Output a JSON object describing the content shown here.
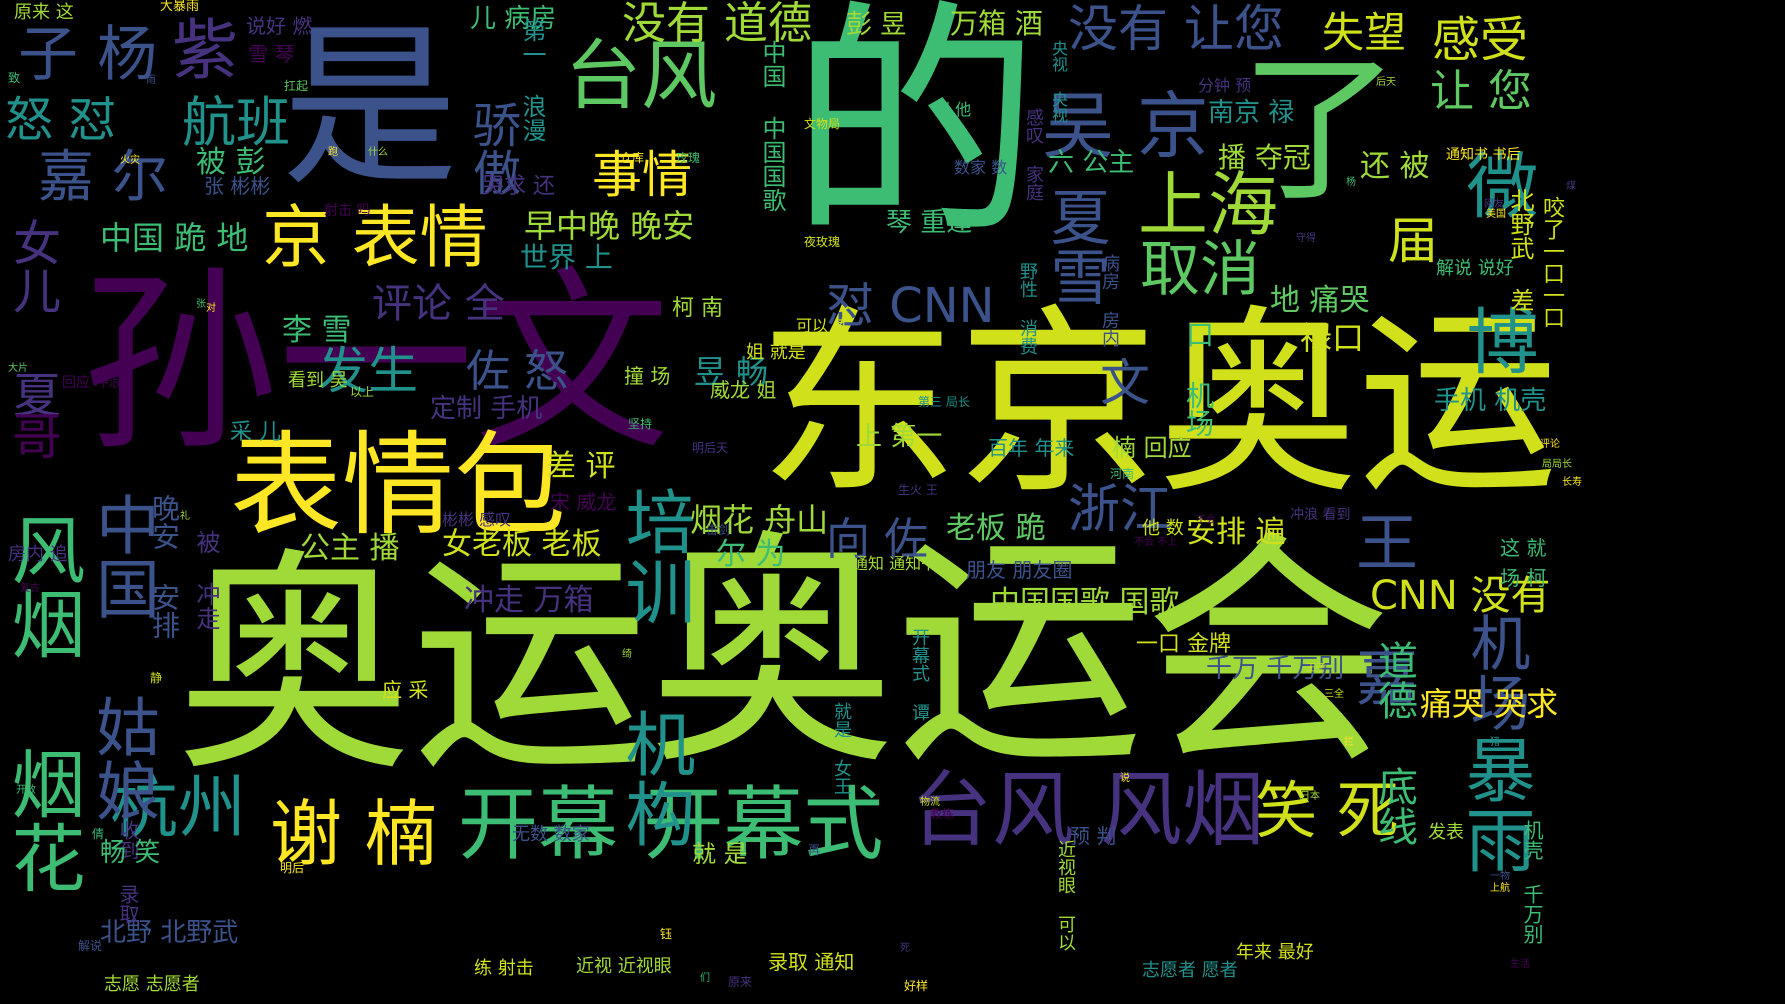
{
  "background_color": "#000000",
  "palette": [
    "#440154",
    "#3b528b",
    "#21918c",
    "#5ec962",
    "#a0da39",
    "#d0e11c",
    "#fde725"
  ],
  "words": [
    {
      "id": "w-aoyun-1",
      "text": "奥运",
      "color": "#a0da39"
    },
    {
      "id": "w-aoyunhui",
      "text": "奥运会",
      "color": "#a0da39"
    },
    {
      "id": "w-de",
      "text": "的",
      "color": "#3dbc74"
    },
    {
      "id": "w-dongjing-aoyun",
      "text": "东京奥运",
      "color": "#d0e11c"
    },
    {
      "id": "w-sun-yiwen",
      "text": "孙一文",
      "color": "#440154"
    },
    {
      "id": "w-shi",
      "text": "是",
      "color": "#3b528b"
    },
    {
      "id": "w-le",
      "text": "了",
      "color": "#5ec962"
    },
    {
      "id": "w-biaoqingbao",
      "text": "表情包",
      "color": "#fde725"
    },
    {
      "id": "w-jing-biaoqing",
      "text": "京 表情",
      "color": "#fde725"
    },
    {
      "id": "w-taifeng-1",
      "text": "台风",
      "color": "#5ec962"
    },
    {
      "id": "w-taifeng-fengyan",
      "text": "台风 风烟",
      "color": "#46327e"
    },
    {
      "id": "w-kaimu",
      "text": "开幕 开幕式",
      "color": "#3dbc74"
    },
    {
      "id": "w-xienan",
      "text": "谢 楠",
      "color": "#fde725"
    },
    {
      "id": "w-hangzhou",
      "text": "杭州",
      "color": "#21918c"
    },
    {
      "id": "w-xiaosi",
      "text": "笑 死",
      "color": "#d0e11c"
    },
    {
      "id": "w-fengyan-yanhua",
      "text": "风烟 烟花",
      "color": "#3dbc74"
    },
    {
      "id": "w-zhongguo-guniang",
      "text": "中国 姑娘",
      "color": "#3b528b"
    },
    {
      "id": "w-peixun-jigou",
      "text": "培训 机构",
      "color": "#21918c"
    },
    {
      "id": "w-wujing",
      "text": "吴 京",
      "color": "#3b528b"
    },
    {
      "id": "w-shanghai",
      "text": "上海",
      "color": "#a0da39"
    },
    {
      "id": "w-quxiao",
      "text": "取消",
      "color": "#5ec962"
    },
    {
      "id": "w-xiaxue",
      "text": "夏雪",
      "color": "#3b528b"
    },
    {
      "id": "w-weibo",
      "text": "微 博",
      "color": "#21918c"
    },
    {
      "id": "w-baoyu",
      "text": "暴雨",
      "color": "#21918c"
    },
    {
      "id": "w-wangjia",
      "text": "王 嘉",
      "color": "#3b528b"
    },
    {
      "id": "w-jichang",
      "text": "机场",
      "color": "#3b528b"
    },
    {
      "id": "w-zhejiang",
      "text": "浙江",
      "color": "#3b528b"
    },
    {
      "id": "w-hangban",
      "text": "航班",
      "color": "#21918c"
    },
    {
      "id": "w-jiaer",
      "text": "嘉 尔",
      "color": "#3b528b"
    },
    {
      "id": "w-ziyang",
      "text": "子 杨",
      "color": "#3b528b"
    },
    {
      "id": "w-zi",
      "text": "紫",
      "color": "#46327e"
    },
    {
      "id": "w-nunu",
      "text": "怒 怼",
      "color": "#21918c"
    },
    {
      "id": "w-jiaoao",
      "text": "骄傲",
      "color": "#3b528b"
    },
    {
      "id": "w-shiqing",
      "text": "事情",
      "color": "#fde725"
    },
    {
      "id": "w-meiyou-daode",
      "text": "没有 道德",
      "color": "#a0da39"
    },
    {
      "id": "w-meiyou-rangnin",
      "text": "没有 让您",
      "color": "#3b528b"
    },
    {
      "id": "w-shiwang",
      "text": "失望",
      "color": "#d0e11c"
    },
    {
      "id": "w-ganshou",
      "text": "感受",
      "color": "#d0e11c"
    },
    {
      "id": "w-rangnin",
      "text": "让 您",
      "color": "#5ec962"
    },
    {
      "id": "w-nvermen",
      "text": "女儿 夏",
      "color": "#46327e"
    },
    {
      "id": "w-ge",
      "text": "哥",
      "color": "#440154"
    },
    {
      "id": "w-fasheng",
      "text": "发生",
      "color": "#21918c"
    },
    {
      "id": "w-zuonu",
      "text": "佐 怒",
      "color": "#3b528b"
    },
    {
      "id": "w-dui-cnn",
      "text": "怼 CNN",
      "color": "#3b528b"
    },
    {
      "id": "w-cnn-meiyou",
      "text": "CNN 没有",
      "color": "#d0e11c"
    },
    {
      "id": "w-xiangzuo",
      "text": "向 佐",
      "color": "#3b528b"
    },
    {
      "id": "w-wen",
      "text": "文",
      "color": "#3b528b"
    },
    {
      "id": "w-jie",
      "text": "届",
      "color": "#d0e11c"
    },
    {
      "id": "w-pinglun-quan",
      "text": "评论 全",
      "color": "#46327e"
    },
    {
      "id": "w-zaozhongwan",
      "text": "早中晚 晚安",
      "color": "#a0da39"
    },
    {
      "id": "w-shijie-shang",
      "text": "世界 上",
      "color": "#21918c"
    },
    {
      "id": "w-zhongguo-guige",
      "text": "中国 跪 地",
      "color": "#3dbc74"
    },
    {
      "id": "w-beipeng",
      "text": "被 彭",
      "color": "#3dbc74"
    },
    {
      "id": "w-lixue",
      "text": "李 雪",
      "color": "#3dbc74"
    },
    {
      "id": "w-yuchang",
      "text": "昱 畅",
      "color": "#21918c"
    },
    {
      "id": "w-anpai-bian",
      "text": "安排 遍",
      "color": "#d0e11c"
    },
    {
      "id": "w-daode-dixian",
      "text": "道德 底线",
      "color": "#3dbc74"
    },
    {
      "id": "w-tongku-kuqiu",
      "text": "痛哭 哭求",
      "color": "#fde725"
    },
    {
      "id": "w-zhongguo-guoge",
      "text": "中国国歌 国歌",
      "color": "#a0da39"
    },
    {
      "id": "w-nvlaoban",
      "text": "女老板 老板",
      "color": "#d0e11c"
    },
    {
      "id": "w-gongzhu-bo",
      "text": "公主 播",
      "color": "#a0da39"
    },
    {
      "id": "w-yanhua-zhoushan",
      "text": "烟花 舟山",
      "color": "#a0da39"
    },
    {
      "id": "w-erwei",
      "text": "尔 为",
      "color": "#3dbc74"
    },
    {
      "id": "w-chongzou",
      "text": "冲走 万箱",
      "color": "#46327e"
    },
    {
      "id": "w-chaping",
      "text": "差 评",
      "color": "#d0e11c"
    },
    {
      "id": "w-wanan-anpai",
      "text": "晚安 安排",
      "color": "#3b528b"
    },
    {
      "id": "w-beiye",
      "text": "北野 北野武",
      "color": "#3b528b"
    },
    {
      "id": "w-zhiyuan",
      "text": "志愿 志愿者",
      "color": "#a0da39"
    },
    {
      "id": "w-jinpai",
      "text": "一口 金牌",
      "color": "#d0e11c"
    },
    {
      "id": "w-qianwan",
      "text": "千万 千万别",
      "color": "#3b528b"
    },
    {
      "id": "w-huiying",
      "text": "楠 回应",
      "color": "#a0da39"
    },
    {
      "id": "w-kenan",
      "text": "柯 南",
      "color": "#a0da39"
    },
    {
      "id": "w-shangdiyi",
      "text": "上 第一",
      "color": "#a0da39"
    },
    {
      "id": "w-dingzhi",
      "text": "定制 手机",
      "color": "#46327e"
    },
    {
      "id": "w-nanjing-lu",
      "text": "南京 禄",
      "color": "#21918c"
    },
    {
      "id": "w-bo-duoguan",
      "text": "播 夺冠",
      "color": "#a0da39"
    },
    {
      "id": "w-haibei",
      "text": "还 被",
      "color": "#a0da39"
    },
    {
      "id": "w-pengyu",
      "text": "彭 昱",
      "color": "#a0da39"
    },
    {
      "id": "w-wanxiang-jiu",
      "text": "万箱 酒",
      "color": "#a0da39"
    },
    {
      "id": "w-liu-gongzhu",
      "text": "六 公主",
      "color": "#3dbc74"
    },
    {
      "id": "w-qin-chongfeng",
      "text": "琴 重逢",
      "color": "#3dbc74"
    },
    {
      "id": "w-di-tongku",
      "text": "地 痛哭",
      "color": "#5ec962"
    },
    {
      "id": "w-lukou",
      "text": "禄口",
      "color": "#d0e11c"
    },
    {
      "id": "w-jichang-2",
      "text": "口 机场",
      "color": "#3dbc74"
    },
    {
      "id": "w-ersidai",
      "text": "儿 病房",
      "color": "#3dbc74"
    },
    {
      "id": "w-diyi-langman",
      "text": "第一 浪漫",
      "color": "#21918c"
    },
    {
      "id": "w-zhongguo-guoge-v",
      "text": "中国 中国国歌",
      "color": "#3dbc74"
    },
    {
      "id": "w-pengyou",
      "text": "朋友 朋友圈",
      "color": "#3b528b"
    },
    {
      "id": "w-laoban-gui",
      "text": "老板 跪",
      "color": "#5ec962"
    },
    {
      "id": "w-shouji-jike",
      "text": "手机 机壳",
      "color": "#21918c"
    },
    {
      "id": "w-xieye-yaole",
      "text": "咬了一口一口",
      "color": "#d0e11c"
    },
    {
      "id": "w-beiyewu-cha",
      "text": "北野武 差",
      "color": "#d0e11c"
    },
    {
      "id": "w-jiejue",
      "text": "解说 说好",
      "color": "#3dbc74"
    },
    {
      "id": "w-changke",
      "text": "场 柯",
      "color": "#3dbc74"
    },
    {
      "id": "w-zhejiu",
      "text": "这 就",
      "color": "#3dbc74"
    },
    {
      "id": "w-yuce",
      "text": "预 判",
      "color": "#3b528b"
    },
    {
      "id": "w-wushu",
      "text": "无数 数家",
      "color": "#3b528b"
    },
    {
      "id": "w-shoujiu",
      "text": "收到 录取",
      "color": "#46327e"
    },
    {
      "id": "w-changxiao",
      "text": "畅 笑",
      "color": "#3dbc74"
    },
    {
      "id": "w-beichongzou",
      "text": "被 冲走",
      "color": "#46327e"
    },
    {
      "id": "w-jiuzai",
      "text": "就 是",
      "color": "#a0da39"
    },
    {
      "id": "w-caier",
      "text": "采 儿",
      "color": "#21918c"
    },
    {
      "id": "w-kandao",
      "text": "看到 吴",
      "color": "#a0da39"
    },
    {
      "id": "w-zhuangchang",
      "text": "撞 场",
      "color": "#a0da39"
    },
    {
      "id": "w-weilong",
      "text": "威龙 姐",
      "color": "#a0da39"
    },
    {
      "id": "w-jie-jiushi",
      "text": "姐 就是",
      "color": "#d0e11c"
    },
    {
      "id": "w-keyi-lian",
      "text": "可以 练",
      "color": "#d0e11c"
    },
    {
      "id": "w-baiyuan",
      "text": "百年 年来",
      "color": "#21918c"
    },
    {
      "id": "w-yingcai",
      "text": "应 采",
      "color": "#d0e11c"
    },
    {
      "id": "w-song-weilong",
      "text": "宋 威龙",
      "color": "#440154"
    },
    {
      "id": "w-zhangbin",
      "text": "张 彬彬",
      "color": "#3b528b"
    },
    {
      "id": "w-xueqin",
      "text": "雪 琴",
      "color": "#440154"
    },
    {
      "id": "w-shuohao",
      "text": "说好 燃",
      "color": "#46327e"
    },
    {
      "id": "w-yuanlai",
      "text": "原来 这",
      "color": "#a0da39"
    },
    {
      "id": "w-dabao",
      "text": "大暴雨",
      "color": "#fde725"
    },
    {
      "id": "w-tongzhi",
      "text": "通知 通知书",
      "color": "#a0da39"
    },
    {
      "id": "w-luqu",
      "text": "录取 通知",
      "color": "#d0e11c"
    },
    {
      "id": "w-jinshi",
      "text": "近视 近视眼",
      "color": "#a0da39"
    },
    {
      "id": "w-lianshe",
      "text": "练 射击",
      "color": "#d0e11c"
    },
    {
      "id": "w-zhiyuanzhe",
      "text": "志愿者 愿者",
      "color": "#21918c"
    },
    {
      "id": "w-niandai",
      "text": "年来 最好",
      "color": "#d0e11c"
    },
    {
      "id": "w-nvwang",
      "text": "就是 女王",
      "color": "#21918c"
    },
    {
      "id": "w-kaimushi-v",
      "text": "开幕式 谭",
      "color": "#21918c"
    },
    {
      "id": "w-jiankang",
      "text": "近视眼 可以",
      "color": "#a0da39"
    },
    {
      "id": "w-jiefang",
      "text": "机壳 千万别",
      "color": "#3dbc74"
    },
    {
      "id": "w-yexing",
      "text": "野性 消费",
      "color": "#21918c"
    },
    {
      "id": "w-bingfang",
      "text": "病房 房内",
      "color": "#3b528b"
    },
    {
      "id": "w-qiangxiong",
      "text": "感叹 家庭",
      "color": "#46327e"
    },
    {
      "id": "w-shuzi",
      "text": "数家 数",
      "color": "#3b528b"
    },
    {
      "id": "w-fenzhong",
      "text": "分钟 预",
      "color": "#46327e"
    },
    {
      "id": "w-tongzhishu",
      "text": "通知书 书后",
      "color": "#fde725"
    },
    {
      "id": "w-yeguihua",
      "text": "夜玫瑰",
      "color": "#d0e11c"
    },
    {
      "id": "w-wenwuju",
      "text": "文物局",
      "color": "#d0e11c"
    },
    {
      "id": "w-cangku",
      "text": "仓库",
      "color": "#fde725"
    },
    {
      "id": "w-meigui",
      "text": "玫瑰",
      "color": "#3dbc74"
    },
    {
      "id": "w-shenme",
      "text": "什么",
      "color": "#a0da39"
    },
    {
      "id": "w-shejixiao",
      "text": "射击 吗",
      "color": "#440154"
    },
    {
      "id": "w-huozai",
      "text": "火灾",
      "color": "#fde725"
    },
    {
      "id": "w-yangkou",
      "text": "扛起",
      "color": "#5ec962"
    },
    {
      "id": "w-zhi",
      "text": "致",
      "color": "#3dbc74"
    },
    {
      "id": "w-yu",
      "text": "雨",
      "color": "#3b528b"
    },
    {
      "id": "w-dapian",
      "text": "大片",
      "color": "#5ec962"
    },
    {
      "id": "w-chonglang",
      "text": "回应 冲浪",
      "color": "#440154"
    },
    {
      "id": "w-yishang",
      "text": "以上",
      "color": "#a0da39"
    },
    {
      "id": "w-disan",
      "text": "第三 局长",
      "color": "#21918c"
    },
    {
      "id": "w-jianchi",
      "text": "坚持",
      "color": "#3dbc74"
    },
    {
      "id": "w-minghoutian",
      "text": "明后天",
      "color": "#46327e"
    },
    {
      "id": "w-shenghuo",
      "text": "生火 王",
      "color": "#46327e"
    },
    {
      "id": "w-henan",
      "text": "河南",
      "color": "#3dbc74"
    },
    {
      "id": "w-jujian",
      "text": "击剑",
      "color": "#3b528b"
    },
    {
      "id": "w-tadeshu",
      "text": "他 数",
      "color": "#d0e11c"
    },
    {
      "id": "w-buhui",
      "text": "不会",
      "color": "#440154"
    },
    {
      "id": "w-fufang",
      "text": "房内 追",
      "color": "#46327e"
    },
    {
      "id": "w-lichang",
      "text": "礼",
      "color": "#a0da39"
    },
    {
      "id": "w-binbin",
      "text": "彬彬 感叹",
      "color": "#46327e"
    },
    {
      "id": "w-fuye",
      "text": "复古",
      "color": "#440154"
    },
    {
      "id": "w-jing",
      "text": "静",
      "color": "#d0e11c"
    },
    {
      "id": "w-kaifang",
      "text": "开放",
      "color": "#3dbc74"
    },
    {
      "id": "w-qing",
      "text": "倩",
      "color": "#3dbc74"
    },
    {
      "id": "w-minghou",
      "text": "明后",
      "color": "#fde725"
    },
    {
      "id": "w-jiejue2",
      "text": "解说",
      "color": "#3b528b"
    },
    {
      "id": "w-yu-ke",
      "text": "钰",
      "color": "#fde725"
    },
    {
      "id": "w-men",
      "text": "们",
      "color": "#3dbc74"
    },
    {
      "id": "w-yuanlai2",
      "text": "原来",
      "color": "#46327e"
    },
    {
      "id": "w-haoyang",
      "text": "好样",
      "color": "#fde725"
    },
    {
      "id": "w-si",
      "text": "死",
      "color": "#46327e"
    },
    {
      "id": "w-zai",
      "text": "再",
      "color": "#3b528b"
    },
    {
      "id": "w-jiaolian",
      "text": "教练",
      "color": "#440154"
    },
    {
      "id": "w-wuliu",
      "text": "物流",
      "color": "#d0e11c"
    },
    {
      "id": "w-shuo",
      "text": "说",
      "color": "#fde725"
    },
    {
      "id": "w-riben",
      "text": "日本",
      "color": "#a0da39"
    },
    {
      "id": "w-sanquan",
      "text": "三全",
      "color": "#d0e11c"
    },
    {
      "id": "w-wangzi",
      "text": "王子",
      "color": "#d0e11c"
    },
    {
      "id": "w-chonglang2",
      "text": "冲浪 看到",
      "color": "#46327e"
    },
    {
      "id": "w-changsheng",
      "text": "长寿",
      "color": "#fde725"
    },
    {
      "id": "w-jujiazhang",
      "text": "局局长",
      "color": "#a0da39"
    },
    {
      "id": "w-pinglun2",
      "text": "评论",
      "color": "#fde725"
    },
    {
      "id": "w-yiwu",
      "text": "一物",
      "color": "#3b528b"
    },
    {
      "id": "w-shanghang",
      "text": "上航",
      "color": "#fde725"
    },
    {
      "id": "w-shenghuo2",
      "text": "生活",
      "color": "#440154"
    },
    {
      "id": "w-wangyou",
      "text": "网友",
      "color": "#46327e"
    },
    {
      "id": "w-meiguo",
      "text": "美国",
      "color": "#fde725"
    },
    {
      "id": "w-shourou",
      "text": "守得",
      "color": "#46327e"
    },
    {
      "id": "w-yang",
      "text": "杨",
      "color": "#3dbc74"
    },
    {
      "id": "w-houtian",
      "text": "后天",
      "color": "#a0da39"
    },
    {
      "id": "w-dui",
      "text": "对",
      "color": "#fde725"
    },
    {
      "id": "w-zhang2",
      "text": "张",
      "color": "#3dbc74"
    },
    {
      "id": "w-pao",
      "text": "跑",
      "color": "#fde725"
    },
    {
      "id": "w-qiuzhe",
      "text": "哭求 还",
      "color": "#46327e"
    },
    {
      "id": "w-panta",
      "text": "判 他",
      "color": "#3dbc74"
    },
    {
      "id": "w-dianshi",
      "text": "央视 央视",
      "color": "#21918c"
    },
    {
      "id": "w-jipin",
      "text": "绮",
      "color": "#a0da39"
    },
    {
      "id": "w-buzhi",
      "text": "不会 不上",
      "color": "#440154"
    },
    {
      "id": "w-biaoyang",
      "text": "发表",
      "color": "#a0da39"
    },
    {
      "id": "w-xia-yu",
      "text": "拦",
      "color": "#fde725"
    },
    {
      "id": "w-zhang3",
      "text": "猪",
      "color": "#21918c"
    },
    {
      "id": "w-jiu",
      "text": "煤",
      "color": "#46327e"
    }
  ]
}
